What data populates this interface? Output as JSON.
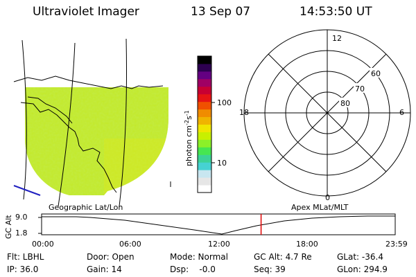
{
  "header": {
    "instrument": "Ultraviolet Imager",
    "date": "13 Sep 07",
    "time": "14:53:50 UT"
  },
  "colorbar": {
    "unit_label": "photon cm",
    "unit_exp1": "-2",
    "unit_s": "s",
    "unit_exp2": "-1",
    "tick_100": "100",
    "tick_10": "10",
    "colors": [
      "#ffffff",
      "#e6e6e6",
      "#c8e6f0",
      "#46d2d2",
      "#3cd296",
      "#46e650",
      "#8cf028",
      "#c8f000",
      "#f0e600",
      "#f0b400",
      "#f08c00",
      "#f05000",
      "#e61414",
      "#c80032",
      "#a00064",
      "#640082",
      "#2d0050",
      "#000000"
    ]
  },
  "polar": {
    "mlt_top": "12",
    "mlt_left": "18",
    "mlt_right": "6",
    "mlt_bottom": "0",
    "lat_60": "60",
    "lat_70": "70",
    "lat_80": "80"
  },
  "timeline": {
    "left_label": "Geographic Lat/Lon",
    "right_label": "Apex MLat/MLT",
    "y_axis_label": "GC Alt",
    "y_ticks": [
      "9.0",
      "1.8"
    ],
    "x_ticks": [
      "00:00",
      "06:00",
      "12:00",
      "18:00",
      "23:59"
    ],
    "marker_color": "#e00000",
    "marker_time_hours": 14.897
  },
  "info": {
    "filter": "Flt: LBHL",
    "ip": "IP: 36.0",
    "door": "Door: Open",
    "gain": "Gain: 14",
    "mode": "Mode: Normal",
    "dsp": "Dsp:    -0.0",
    "gc_alt": "GC Alt: 4.7 Re",
    "seq": "Seq: 39",
    "glat": "GLat: -36.4",
    "glon": "GLon: 294.9"
  }
}
